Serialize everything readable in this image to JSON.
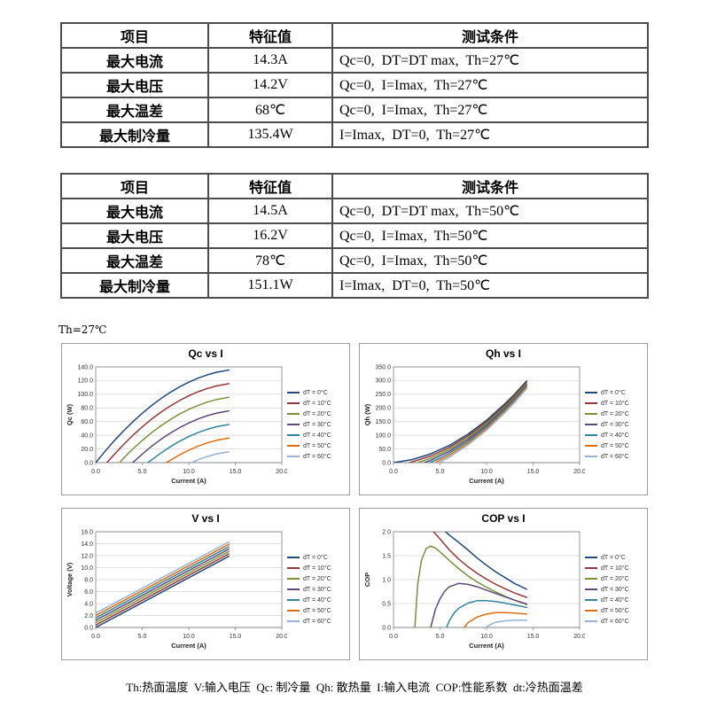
{
  "page": {
    "th_label": "Th=27℃",
    "footer": "Th:热面温度  V:输入电压  Qc: 制冷量  Qh: 散热量  I:输入电流  COP:性能系数  dt:冷热面温差"
  },
  "tables": [
    {
      "headers": [
        "项目",
        "特征值",
        "测试条件"
      ],
      "rows": [
        [
          "最大电流",
          "14.3A",
          "Qc=0,  DT=DT max,  Th=27℃"
        ],
        [
          "最大电压",
          "14.2V",
          "Qc=0,  I=Imax,  Th=27℃"
        ],
        [
          "最大温差",
          "68℃",
          "Qc=0,  I=Imax,  Th=27℃"
        ],
        [
          "最大制冷量",
          "135.4W",
          "I=Imax,  DT=0,  Th=27℃"
        ]
      ]
    },
    {
      "headers": [
        "项目",
        "特征值",
        "测试条件"
      ],
      "rows": [
        [
          "最大电流",
          "14.5A",
          "Qc=0,  DT=DT max,  Th=50℃"
        ],
        [
          "最大电压",
          "16.2V",
          "Qc=0,  I=Imax,  Th=50℃"
        ],
        [
          "最大温差",
          "78℃",
          "Qc=0,  I=Imax,  Th=50℃"
        ],
        [
          "最大制冷量",
          "151.1W",
          "I=Imax,  DT=0,  Th=50℃"
        ]
      ]
    }
  ],
  "chart_data": [
    {
      "id": "qc-vs-i",
      "type": "line",
      "title": "Qc vs I",
      "xlabel": "Current (A)",
      "ylabel": "Qc (W)",
      "xlim": [
        0,
        20
      ],
      "ylim": [
        0,
        140
      ],
      "xticks": [
        0,
        5,
        10,
        15,
        20
      ],
      "yticks": [
        0,
        20,
        40,
        60,
        80,
        100,
        120,
        140
      ],
      "legend_position": "right",
      "series": [
        {
          "name": "dT = 0°C",
          "color": "#1F497D",
          "x": [
            0,
            1,
            2,
            3,
            4,
            5,
            6,
            7,
            8,
            9,
            10,
            11,
            12,
            13,
            14.3
          ],
          "y": [
            0,
            16.6,
            32.1,
            46.5,
            59.9,
            72.2,
            83.5,
            93.6,
            102.7,
            110.7,
            117.7,
            123.6,
            128.4,
            132.2,
            135.4
          ]
        },
        {
          "name": "dT = 10°C",
          "color": "#953735",
          "x": [
            1.2,
            2,
            3,
            4,
            5,
            6,
            7,
            8,
            9,
            10,
            11,
            12,
            13,
            14.3
          ],
          "y": [
            0,
            12.2,
            26.6,
            40,
            52.3,
            63.6,
            73.7,
            82.8,
            90.8,
            97.8,
            103.7,
            108.5,
            112.3,
            115.5
          ]
        },
        {
          "name": "dT = 20°C",
          "color": "#76933C",
          "x": [
            2.6,
            3,
            4,
            5,
            6,
            7,
            8,
            9,
            10,
            11,
            12,
            13,
            14.3
          ],
          "y": [
            0,
            6.7,
            20.1,
            32.4,
            43.7,
            53.8,
            62.9,
            71,
            77.9,
            83.8,
            88.6,
            92.4,
            95.6
          ]
        },
        {
          "name": "dT = 30°C",
          "color": "#60497A",
          "x": [
            4,
            5,
            6,
            7,
            8,
            9,
            10,
            11,
            12,
            13,
            14.3
          ],
          "y": [
            0.2,
            12.5,
            23.8,
            33.9,
            43,
            51.1,
            58,
            63.9,
            68.7,
            72.5,
            75.7
          ]
        },
        {
          "name": "dT = 40°C",
          "color": "#31849B",
          "x": [
            5.6,
            6,
            7,
            8,
            9,
            10,
            11,
            12,
            13,
            14.3
          ],
          "y": [
            0,
            3.9,
            14,
            23.1,
            31.2,
            38.1,
            44,
            48.8,
            52.6,
            55.8
          ]
        },
        {
          "name": "dT = 50°C",
          "color": "#E36C0A",
          "x": [
            7.6,
            8,
            9,
            10,
            11,
            12,
            13,
            14.3
          ],
          "y": [
            0,
            3.2,
            11.3,
            18.2,
            24.1,
            28.9,
            32.7,
            35.9
          ]
        },
        {
          "name": "dT = 60°C",
          "color": "#95B3D7",
          "x": [
            10.3,
            11,
            12,
            13,
            14.3
          ],
          "y": [
            0,
            4.2,
            9,
            12.8,
            16
          ]
        }
      ]
    },
    {
      "id": "qh-vs-i",
      "type": "line",
      "title": "Qh vs I",
      "xlabel": "Current (A)",
      "ylabel": "Qh (W)",
      "xlim": [
        0,
        20
      ],
      "ylim": [
        0,
        350
      ],
      "xticks": [
        0,
        5,
        10,
        15,
        20
      ],
      "yticks": [
        0,
        50,
        100,
        150,
        200,
        250,
        300,
        350
      ],
      "legend_position": "right",
      "series": [
        {
          "name": "dT = 0°C",
          "color": "#1F497D",
          "x": [
            0,
            2,
            4,
            6,
            8,
            10,
            12,
            13,
            14.3
          ],
          "y": [
            0,
            11,
            32,
            63,
            104,
            155,
            216,
            250,
            298.5
          ]
        },
        {
          "name": "dT = 10°C",
          "color": "#953735",
          "x": [
            1.7,
            2,
            4,
            6,
            8,
            10,
            12,
            13,
            14.3
          ],
          "y": [
            0,
            2.6,
            24.2,
            55.8,
            97.4,
            149,
            210.6,
            245,
            293.8
          ]
        },
        {
          "name": "dT = 20°C",
          "color": "#76933C",
          "x": [
            2.6,
            4,
            6,
            8,
            10,
            12,
            13,
            14.3
          ],
          "y": [
            0,
            16.4,
            48.6,
            90.8,
            143,
            205.2,
            239.8,
            289.1
          ]
        },
        {
          "name": "dT = 30°C",
          "color": "#60497A",
          "x": [
            3.3,
            4,
            6,
            8,
            10,
            12,
            13,
            14.3
          ],
          "y": [
            0,
            8.6,
            41.4,
            84.2,
            137,
            199.8,
            234.7,
            284.4
          ]
        },
        {
          "name": "dT = 40°C",
          "color": "#31849B",
          "x": [
            3.9,
            5,
            6,
            8,
            10,
            12,
            13,
            14.3
          ],
          "y": [
            0,
            16.3,
            34.2,
            77.6,
            131,
            194.4,
            229.6,
            279.7
          ]
        },
        {
          "name": "dT = 50°C",
          "color": "#E36C0A",
          "x": [
            4.5,
            6,
            8,
            10,
            12,
            13,
            14.3
          ],
          "y": [
            0,
            27,
            71,
            125,
            189,
            224.5,
            275
          ]
        },
        {
          "name": "dT = 60°C",
          "color": "#95B3D7",
          "x": [
            4.9,
            6,
            8,
            10,
            12,
            13,
            14.3
          ],
          "y": [
            0,
            19.8,
            64.4,
            119,
            183.6,
            219.4,
            270.2
          ]
        }
      ]
    },
    {
      "id": "v-vs-i",
      "type": "line",
      "title": "V vs I",
      "xlabel": "Current (A)",
      "ylabel": "Voltage (V)",
      "xlim": [
        0,
        20
      ],
      "ylim": [
        0,
        16
      ],
      "xticks": [
        0,
        5,
        10,
        15,
        20
      ],
      "yticks": [
        0,
        2,
        4,
        6,
        8,
        10,
        12,
        14,
        16
      ],
      "legend_position": "right",
      "series": [
        {
          "name": "dT = 0°C",
          "color": "#1F497D",
          "x": [
            0,
            14.3
          ],
          "y": [
            0,
            11.9
          ]
        },
        {
          "name": "dT = 10°C",
          "color": "#953735",
          "x": [
            0,
            14.3
          ],
          "y": [
            0.4,
            12.3
          ]
        },
        {
          "name": "dT = 20°C",
          "color": "#76933C",
          "x": [
            0,
            14.3
          ],
          "y": [
            0.8,
            12.7
          ]
        },
        {
          "name": "dT = 30°C",
          "color": "#60497A",
          "x": [
            0,
            14.3
          ],
          "y": [
            1.2,
            13.1
          ]
        },
        {
          "name": "dT = 40°C",
          "color": "#31849B",
          "x": [
            0,
            14.3
          ],
          "y": [
            1.6,
            13.5
          ]
        },
        {
          "name": "dT = 50°C",
          "color": "#E36C0A",
          "x": [
            0,
            14.3
          ],
          "y": [
            2.0,
            13.9
          ]
        },
        {
          "name": "dT = 60°C",
          "color": "#95B3D7",
          "x": [
            0,
            14.3
          ],
          "y": [
            2.4,
            14.3
          ]
        }
      ]
    },
    {
      "id": "cop-vs-i",
      "type": "line",
      "title": "COP vs I",
      "xlabel": "Current (A)",
      "ylabel": "COP",
      "xlim": [
        0,
        20
      ],
      "ylim": [
        0,
        2
      ],
      "xticks": [
        0,
        5,
        10,
        15,
        20
      ],
      "yticks": [
        0,
        0.5,
        1,
        1.5,
        2
      ],
      "legend_position": "right",
      "series": [
        {
          "name": "dT = 0°C",
          "color": "#1F497D",
          "x": [
            5.6,
            6,
            7,
            8,
            9,
            10,
            11,
            12,
            13,
            14.3
          ],
          "y": [
            2,
            1.93,
            1.78,
            1.62,
            1.45,
            1.3,
            1.16,
            1.04,
            0.92,
            0.8
          ]
        },
        {
          "name": "dT = 10°C",
          "color": "#953735",
          "x": [
            4.3,
            5,
            6,
            7,
            8,
            9,
            10,
            11,
            12,
            13,
            14.3
          ],
          "y": [
            2,
            1.85,
            1.62,
            1.43,
            1.27,
            1.13,
            1.01,
            0.9,
            0.81,
            0.72,
            0.63
          ]
        },
        {
          "name": "dT = 20°C",
          "color": "#76933C",
          "x": [
            2.3,
            2.6,
            3,
            3.5,
            4,
            4.5,
            5,
            6,
            7,
            8,
            9,
            10,
            11,
            12,
            13,
            14.3
          ],
          "y": [
            0,
            0.9,
            1.4,
            1.65,
            1.7,
            1.66,
            1.58,
            1.4,
            1.23,
            1.08,
            0.95,
            0.84,
            0.74,
            0.65,
            0.57,
            0.48
          ]
        },
        {
          "name": "dT = 30°C",
          "color": "#60497A",
          "x": [
            4,
            4.5,
            5,
            5.5,
            6,
            7,
            8,
            9,
            10,
            11,
            12,
            13,
            14.3
          ],
          "y": [
            0,
            0.38,
            0.6,
            0.76,
            0.85,
            0.92,
            0.9,
            0.85,
            0.78,
            0.71,
            0.64,
            0.57,
            0.49
          ]
        },
        {
          "name": "dT = 40°C",
          "color": "#31849B",
          "x": [
            5.7,
            6,
            6.5,
            7,
            8,
            9,
            10,
            11,
            12,
            13,
            14.3
          ],
          "y": [
            0,
            0.14,
            0.3,
            0.4,
            0.51,
            0.56,
            0.56,
            0.54,
            0.51,
            0.47,
            0.42
          ]
        },
        {
          "name": "dT = 50°C",
          "color": "#E36C0A",
          "x": [
            7.6,
            8,
            9,
            10,
            11,
            12,
            13,
            14.3
          ],
          "y": [
            0,
            0.1,
            0.22,
            0.28,
            0.31,
            0.31,
            0.3,
            0.28
          ]
        },
        {
          "name": "dT = 60°C",
          "color": "#95B3D7",
          "x": [
            9.9,
            10.5,
            11,
            12,
            13,
            14.3
          ],
          "y": [
            0,
            0.07,
            0.11,
            0.14,
            0.15,
            0.15
          ]
        }
      ]
    }
  ]
}
